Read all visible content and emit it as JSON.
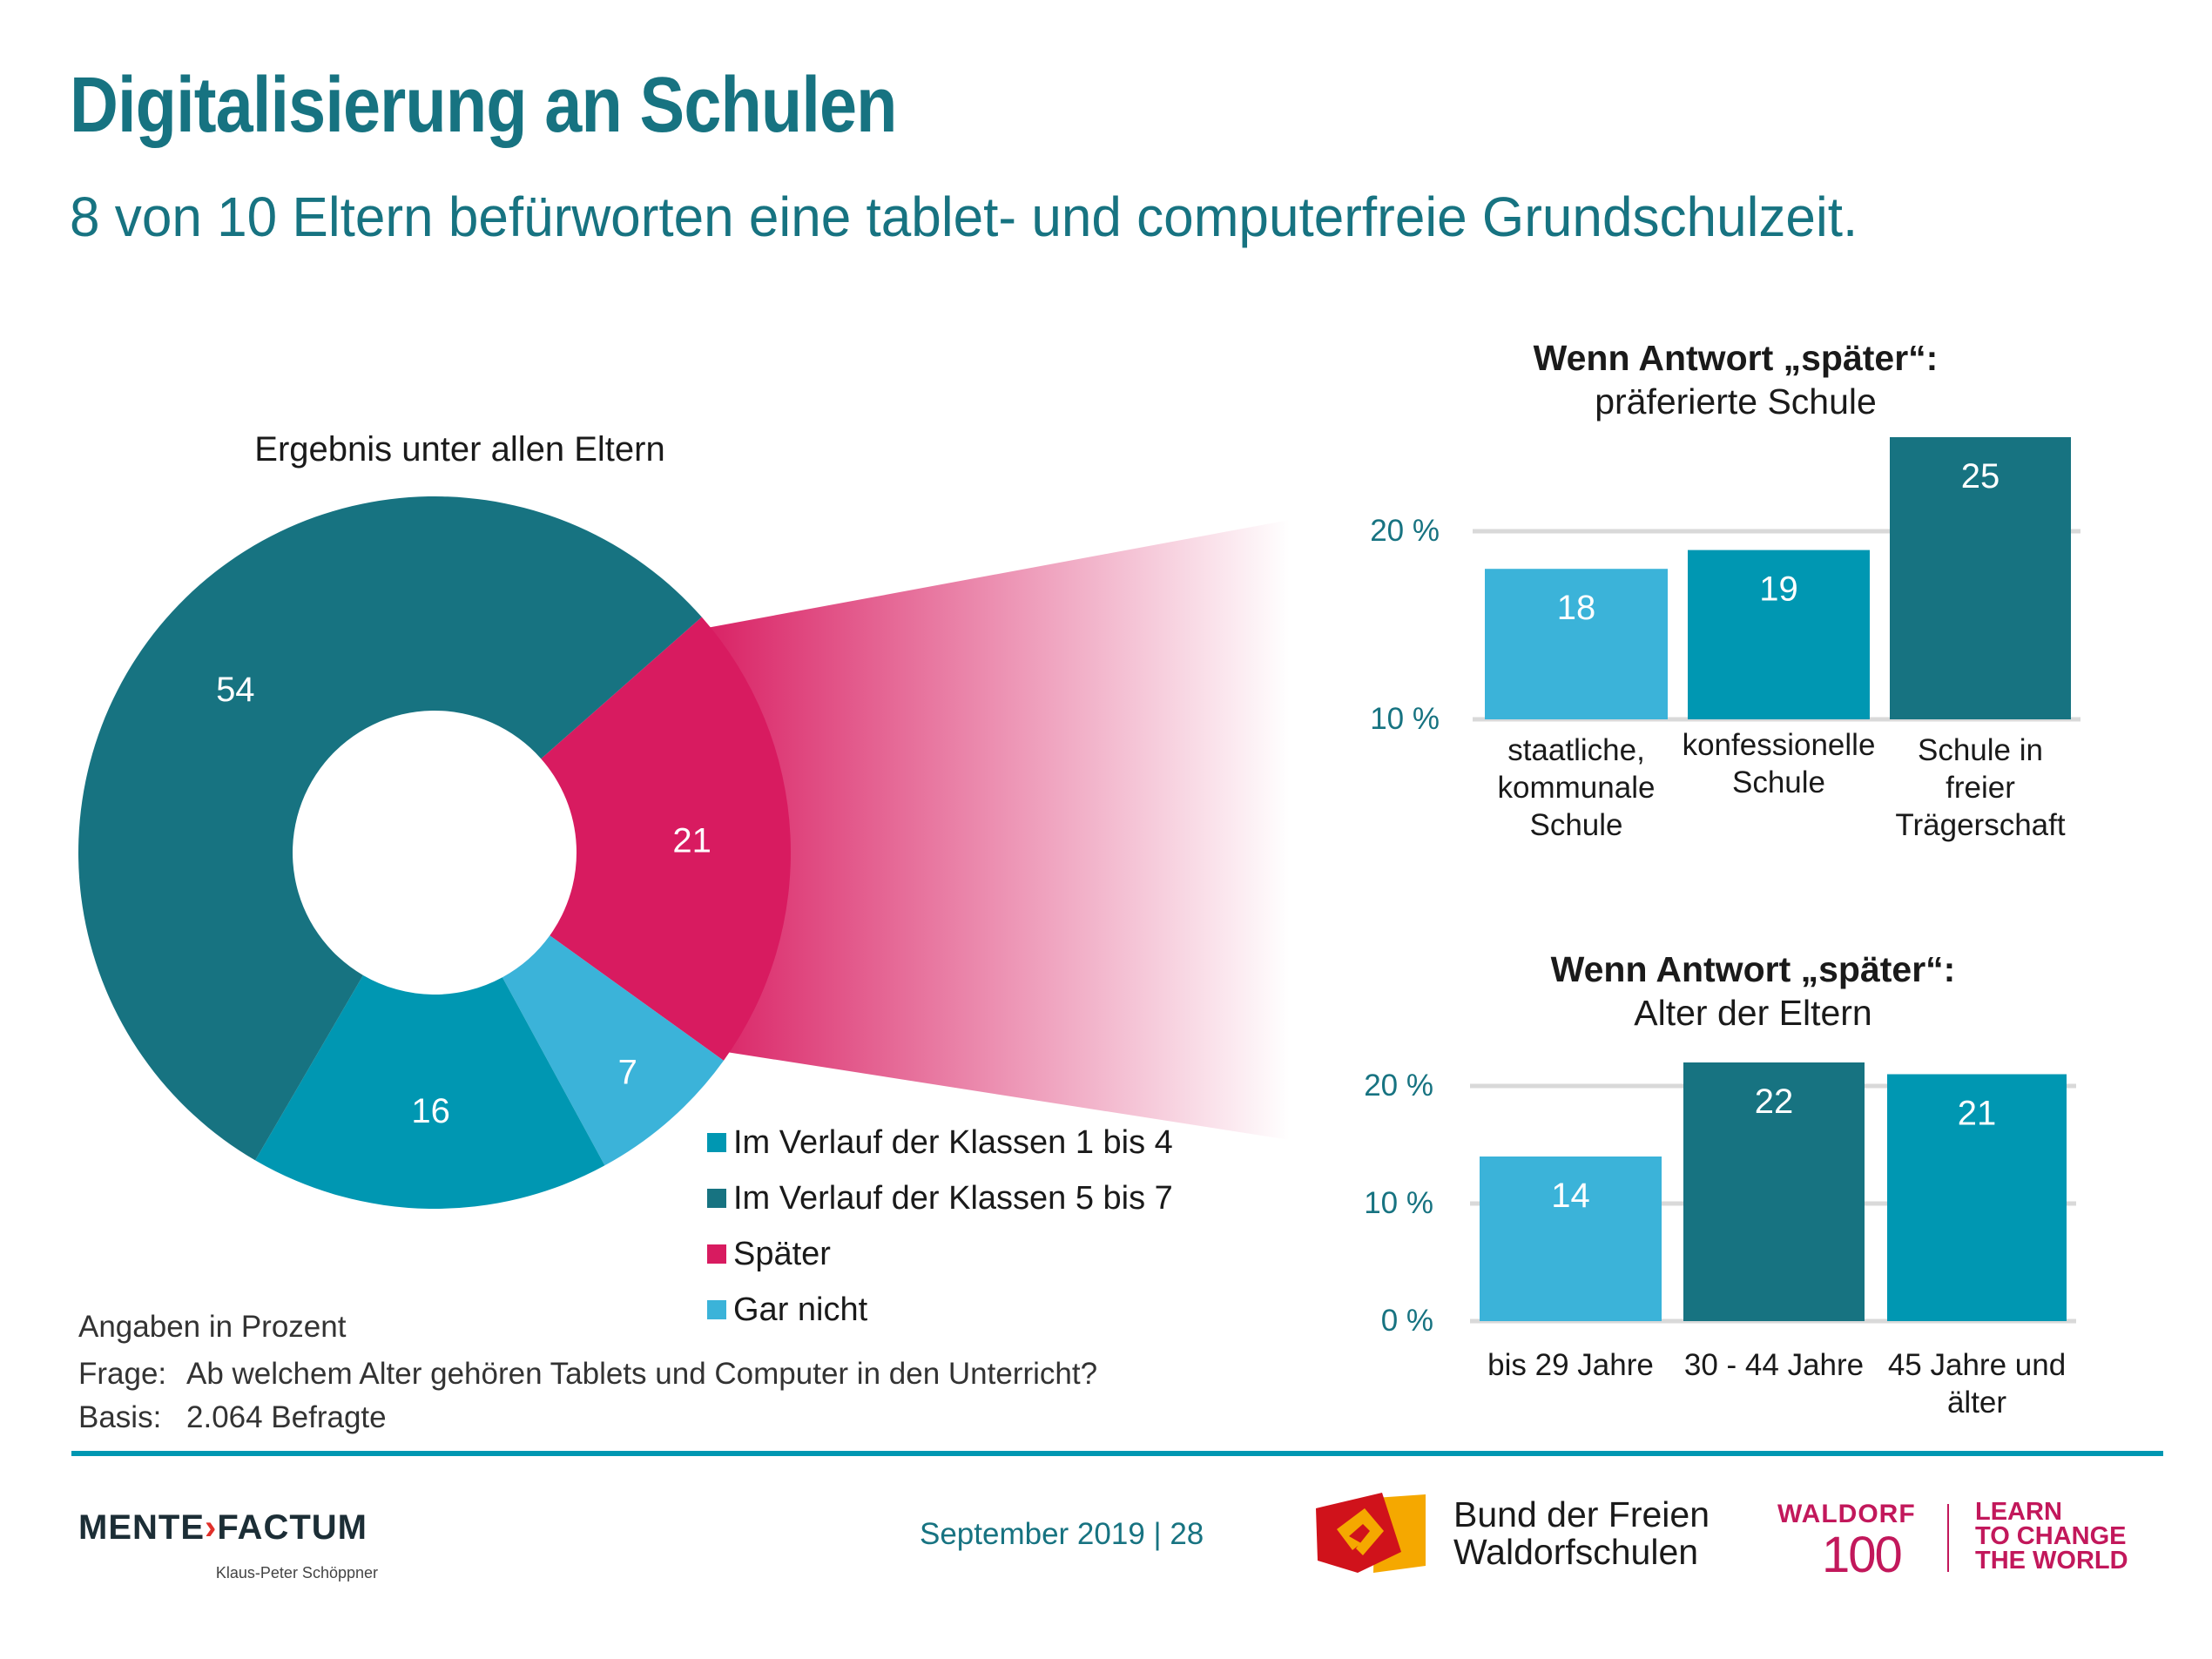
{
  "header": {
    "title": "Digitalisierung an Schulen",
    "subtitle": "8 von 10 Eltern befürworten eine tablet- und computerfreie Grundschulzeit."
  },
  "colors": {
    "teal_dark": "#177381",
    "teal_mid": "#0097b2",
    "teal_light": "#3bb3d9",
    "pink": "#d81b60",
    "grid": "#d9d9d9",
    "footer_line": "#0097b2",
    "waldorf": "#c2185b"
  },
  "chart_data": [
    {
      "type": "pie",
      "title": "Ergebnis unter allen Eltern",
      "donut": true,
      "unit": "%",
      "slices": [
        {
          "label": "Später",
          "value": 21,
          "color": "#d81b60"
        },
        {
          "label": "Gar nicht",
          "value": 7,
          "color": "#3bb3d9"
        },
        {
          "label": "Im Verlauf der Klassen 1 bis 4",
          "value": 16,
          "color": "#0097b2"
        },
        {
          "label": "Im Verlauf der Klassen 5 bis 7",
          "value": 54,
          "color": "#177381"
        }
      ],
      "legend": [
        {
          "label": "Im Verlauf der Klassen 1 bis 4",
          "color": "#0097b2"
        },
        {
          "label": "Im Verlauf der Klassen 5 bis 7",
          "color": "#177381"
        },
        {
          "label": "Später",
          "color": "#d81b60"
        },
        {
          "label": "Gar nicht",
          "color": "#3bb3d9"
        }
      ],
      "legend_position": "bottom-right"
    },
    {
      "type": "bar",
      "title": "Wenn Antwort „später“:",
      "subtitle": "präferierte Schule",
      "categories": [
        "staatliche,\nkommunale\nSchule",
        "konfessionelle\nSchule",
        "Schule in\nfreier\nTrägerschaft"
      ],
      "values": [
        18,
        19,
        25
      ],
      "colors": [
        "#3bb3d9",
        "#0097b2",
        "#177381"
      ],
      "ylim": [
        10,
        25
      ],
      "yticks": [
        10,
        20
      ],
      "ytick_labels": [
        "10 %",
        "20 %"
      ],
      "grid": true,
      "xlabel": "",
      "ylabel": ""
    },
    {
      "type": "bar",
      "title": "Wenn Antwort „später“:",
      "subtitle": "Alter der Eltern",
      "categories": [
        "bis 29 Jahre",
        "30 - 44 Jahre",
        "45 Jahre und\nälter"
      ],
      "values": [
        14,
        22,
        21
      ],
      "colors": [
        "#3bb3d9",
        "#177381",
        "#0097b2"
      ],
      "ylim": [
        0,
        22
      ],
      "yticks": [
        0,
        10,
        20
      ],
      "ytick_labels": [
        "0 %",
        "10 %",
        "20 %"
      ],
      "grid": true,
      "xlabel": "",
      "ylabel": ""
    }
  ],
  "notes": {
    "unit": "Angaben in Prozent",
    "question_key": "Frage:",
    "question": "Ab welchem Alter gehören Tablets und Computer in den Unterricht?",
    "basis_key": "Basis:",
    "basis": "2.064 Befragte"
  },
  "footer": {
    "logo_left": "MENTE",
    "logo_arrow": "›",
    "logo_right": "FACTUM",
    "logo_sub": "Klaus-Peter Schöppner",
    "date_page": "September 2019 | 28",
    "bdfw": "Bund der Freien\nWaldorfschulen",
    "waldorf": "WALDORF",
    "waldorf_num": "100",
    "slogan": "LEARN\nTO CHANGE\nTHE WORLD"
  },
  "icons": {
    "bdfw_logo": "bund-der-freien-waldorfschulen-logo",
    "mentefactum_logo": "mentefactum-logo"
  }
}
